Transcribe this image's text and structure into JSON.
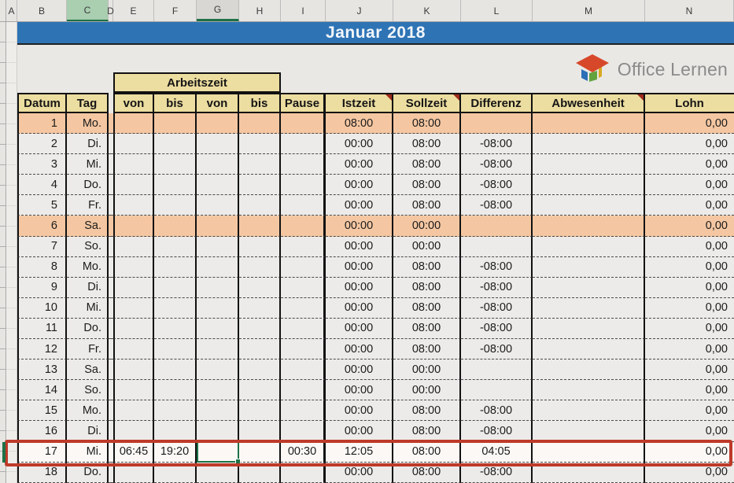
{
  "sheet": {
    "column_letters": [
      "A",
      "B",
      "C",
      "D",
      "E",
      "F",
      "G",
      "H",
      "I",
      "J",
      "K",
      "L",
      "M",
      "N"
    ],
    "highlighted_column_green": "C",
    "active_cell_column": "G",
    "active_cell_row": 17
  },
  "title_banner": {
    "text": "Januar 2018"
  },
  "logo": {
    "text": "Office Lernen"
  },
  "timesheet": {
    "group_header": "Arbeitszeit",
    "headers": {
      "datum": "Datum",
      "tag": "Tag",
      "von1": "von",
      "bis1": "bis",
      "von2": "von",
      "bis2": "bis",
      "pause": "Pause",
      "istzeit": "Istzeit",
      "sollzeit": "Sollzeit",
      "differenz": "Differenz",
      "abwesenheit": "Abwesenheit",
      "lohn": "Lohn"
    },
    "comment_marker_columns": [
      "istzeit",
      "sollzeit",
      "abwesenheit"
    ],
    "rows": [
      {
        "datum": "1",
        "tag": "Mo.",
        "von1": "",
        "bis1": "",
        "von2": "",
        "bis2": "",
        "pause": "",
        "istzeit": "08:00",
        "sollzeit": "08:00",
        "differenz": "",
        "abwesenheit": "",
        "lohn": "0,00",
        "holiday": true
      },
      {
        "datum": "2",
        "tag": "Di.",
        "von1": "",
        "bis1": "",
        "von2": "",
        "bis2": "",
        "pause": "",
        "istzeit": "00:00",
        "sollzeit": "08:00",
        "differenz": "-08:00",
        "abwesenheit": "",
        "lohn": "0,00"
      },
      {
        "datum": "3",
        "tag": "Mi.",
        "von1": "",
        "bis1": "",
        "von2": "",
        "bis2": "",
        "pause": "",
        "istzeit": "00:00",
        "sollzeit": "08:00",
        "differenz": "-08:00",
        "abwesenheit": "",
        "lohn": "0,00"
      },
      {
        "datum": "4",
        "tag": "Do.",
        "von1": "",
        "bis1": "",
        "von2": "",
        "bis2": "",
        "pause": "",
        "istzeit": "00:00",
        "sollzeit": "08:00",
        "differenz": "-08:00",
        "abwesenheit": "",
        "lohn": "0,00"
      },
      {
        "datum": "5",
        "tag": "Fr.",
        "von1": "",
        "bis1": "",
        "von2": "",
        "bis2": "",
        "pause": "",
        "istzeit": "00:00",
        "sollzeit": "08:00",
        "differenz": "-08:00",
        "abwesenheit": "",
        "lohn": "0,00"
      },
      {
        "datum": "6",
        "tag": "Sa.",
        "von1": "",
        "bis1": "",
        "von2": "",
        "bis2": "",
        "pause": "",
        "istzeit": "00:00",
        "sollzeit": "00:00",
        "differenz": "",
        "abwesenheit": "",
        "lohn": "0,00",
        "holiday": true
      },
      {
        "datum": "7",
        "tag": "So.",
        "von1": "",
        "bis1": "",
        "von2": "",
        "bis2": "",
        "pause": "",
        "istzeit": "00:00",
        "sollzeit": "00:00",
        "differenz": "",
        "abwesenheit": "",
        "lohn": "0,00"
      },
      {
        "datum": "8",
        "tag": "Mo.",
        "von1": "",
        "bis1": "",
        "von2": "",
        "bis2": "",
        "pause": "",
        "istzeit": "00:00",
        "sollzeit": "08:00",
        "differenz": "-08:00",
        "abwesenheit": "",
        "lohn": "0,00"
      },
      {
        "datum": "9",
        "tag": "Di.",
        "von1": "",
        "bis1": "",
        "von2": "",
        "bis2": "",
        "pause": "",
        "istzeit": "00:00",
        "sollzeit": "08:00",
        "differenz": "-08:00",
        "abwesenheit": "",
        "lohn": "0,00"
      },
      {
        "datum": "10",
        "tag": "Mi.",
        "von1": "",
        "bis1": "",
        "von2": "",
        "bis2": "",
        "pause": "",
        "istzeit": "00:00",
        "sollzeit": "08:00",
        "differenz": "-08:00",
        "abwesenheit": "",
        "lohn": "0,00"
      },
      {
        "datum": "11",
        "tag": "Do.",
        "von1": "",
        "bis1": "",
        "von2": "",
        "bis2": "",
        "pause": "",
        "istzeit": "00:00",
        "sollzeit": "08:00",
        "differenz": "-08:00",
        "abwesenheit": "",
        "lohn": "0,00"
      },
      {
        "datum": "12",
        "tag": "Fr.",
        "von1": "",
        "bis1": "",
        "von2": "",
        "bis2": "",
        "pause": "",
        "istzeit": "00:00",
        "sollzeit": "08:00",
        "differenz": "-08:00",
        "abwesenheit": "",
        "lohn": "0,00"
      },
      {
        "datum": "13",
        "tag": "Sa.",
        "von1": "",
        "bis1": "",
        "von2": "",
        "bis2": "",
        "pause": "",
        "istzeit": "00:00",
        "sollzeit": "00:00",
        "differenz": "",
        "abwesenheit": "",
        "lohn": "0,00"
      },
      {
        "datum": "14",
        "tag": "So.",
        "von1": "",
        "bis1": "",
        "von2": "",
        "bis2": "",
        "pause": "",
        "istzeit": "00:00",
        "sollzeit": "00:00",
        "differenz": "",
        "abwesenheit": "",
        "lohn": "0,00"
      },
      {
        "datum": "15",
        "tag": "Mo.",
        "von1": "",
        "bis1": "",
        "von2": "",
        "bis2": "",
        "pause": "",
        "istzeit": "00:00",
        "sollzeit": "08:00",
        "differenz": "-08:00",
        "abwesenheit": "",
        "lohn": "0,00"
      },
      {
        "datum": "16",
        "tag": "Di.",
        "von1": "",
        "bis1": "",
        "von2": "",
        "bis2": "",
        "pause": "",
        "istzeit": "00:00",
        "sollzeit": "08:00",
        "differenz": "-08:00",
        "abwesenheit": "",
        "lohn": "0,00"
      },
      {
        "datum": "17",
        "tag": "Mi.",
        "von1": "06:45",
        "bis1": "19:20",
        "von2": "",
        "bis2": "",
        "pause": "00:30",
        "istzeit": "12:05",
        "sollzeit": "08:00",
        "differenz": "04:05",
        "abwesenheit": "",
        "lohn": "0,00",
        "highlighted": true
      },
      {
        "datum": "18",
        "tag": "Do.",
        "von1": "",
        "bis1": "",
        "von2": "",
        "bis2": "",
        "pause": "",
        "istzeit": "00:00",
        "sollzeit": "08:00",
        "differenz": "-08:00",
        "abwesenheit": "",
        "lohn": "0,00"
      }
    ]
  },
  "colors": {
    "banner-blue": "#2E74B5",
    "header-tan": "#ECDDA0",
    "holiday-salmon": "#F4C7A2",
    "row-gray": "#ECEBE9",
    "highlight-red": "#BE3A29",
    "sel-green": "#1E7145",
    "col-green": "#A9CEB0",
    "comment-red": "#9E2B1E",
    "page-bg": "#E9E8E5",
    "chrome-bg": "#E7E5E2"
  }
}
